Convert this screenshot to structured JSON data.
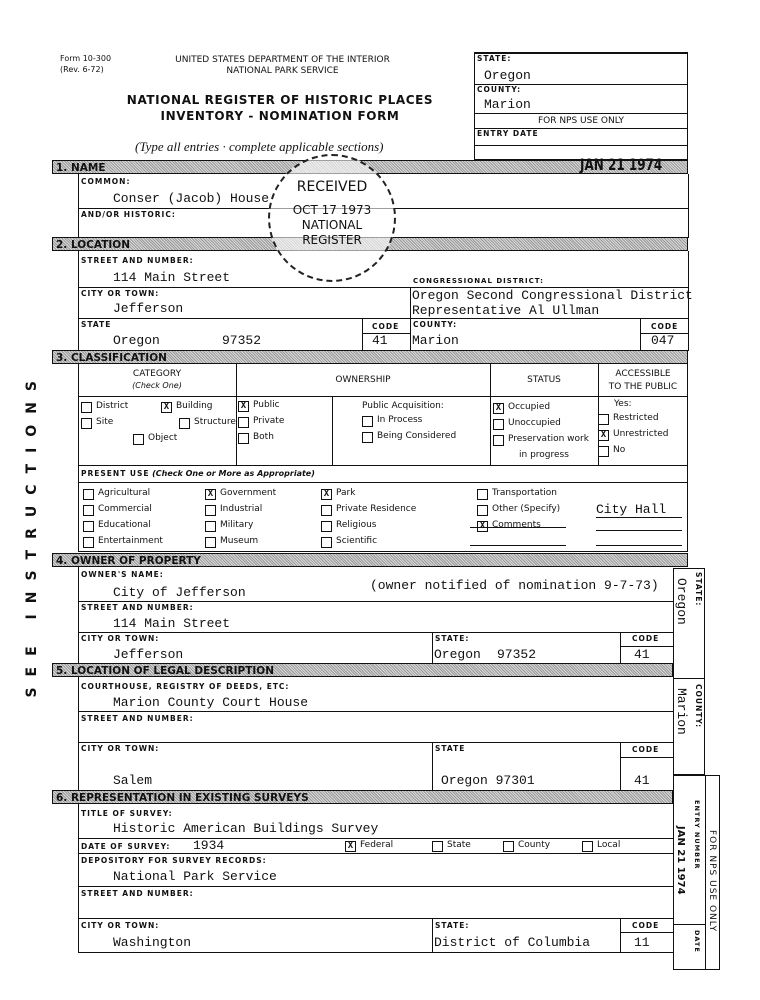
{
  "header": {
    "form_no": "Form 10-300",
    "rev": "(Rev. 6-72)",
    "dept": "UNITED STATES DEPARTMENT OF THE INTERIOR",
    "service": "NATIONAL PARK SERVICE",
    "title1": "NATIONAL REGISTER OF HISTORIC PLACES",
    "title2": "INVENTORY - NOMINATION FORM",
    "instructions": "(Type all entries  ·  complete applicable sections)",
    "side_instructions": "SEE INSTRUCTIONS"
  },
  "nps_box": {
    "state_label": "STATE:",
    "state": "Oregon",
    "county_label": "COUNTY:",
    "county": "Marion",
    "nps_only": "FOR NPS USE ONLY",
    "entry_date_label": "ENTRY DATE",
    "entry_date": "JAN 21 1974"
  },
  "stamp": {
    "line1": "RECEIVED",
    "line2": "OCT 17 1973",
    "line3": "NATIONAL",
    "line4": "REGISTER"
  },
  "s1": {
    "title": "1. NAME",
    "common_label": "COMMON:",
    "common": "Conser (Jacob) House",
    "historic_label": "AND/OR HISTORIC:",
    "historic": ""
  },
  "s2": {
    "title": "2. LOCATION",
    "street_label": "STREET AND NUMBER:",
    "street": "114 Main Street",
    "city_label": "CITY OR TOWN:",
    "city": "Jefferson",
    "district_label": "CONGRESSIONAL DISTRICT:",
    "district1": "Oregon Second Congressional District",
    "district2": "Representative Al Ullman",
    "state_label": "STATE",
    "state": "Oregon",
    "zip": "97352",
    "code_label": "CODE",
    "state_code": "41",
    "county_label": "COUNTY:",
    "county": "Marion",
    "county_code_label": "CODE",
    "county_code": "047"
  },
  "s3": {
    "title": "3. CLASSIFICATION",
    "cat_h1": "CATEGORY",
    "cat_h2": "(Check One)",
    "own_h": "OWNERSHIP",
    "status_h": "STATUS",
    "acc_h1": "ACCESSIBLE",
    "acc_h2": "TO THE PUBLIC",
    "category": [
      {
        "label": "District",
        "checked": false
      },
      {
        "label": "Building",
        "checked": true
      },
      {
        "label": "Site",
        "checked": false
      },
      {
        "label": "Structure",
        "checked": false
      },
      {
        "label": "Object",
        "checked": false
      }
    ],
    "ownership": [
      {
        "label": "Public",
        "checked": true
      },
      {
        "label": "Private",
        "checked": false
      },
      {
        "label": "Both",
        "checked": false
      }
    ],
    "acq_label": "Public Acquisition:",
    "acquisition": [
      {
        "label": "In Process",
        "checked": false
      },
      {
        "label": "Being Considered",
        "checked": false
      }
    ],
    "status": [
      {
        "label": "Occupied",
        "checked": true
      },
      {
        "label": "Unoccupied",
        "checked": false
      },
      {
        "label": "Preservation work",
        "checked": false
      }
    ],
    "status_cont": "in progress",
    "yes_label": "Yes:",
    "access": [
      {
        "label": "Restricted",
        "checked": false
      },
      {
        "label": "Unrestricted",
        "checked": true
      },
      {
        "label": "No",
        "checked": false
      }
    ],
    "present_use_label": "PRESENT USE",
    "present_use_hint": "(Check One or More as Appropriate)",
    "present_use": [
      {
        "label": "Agricultural",
        "checked": false
      },
      {
        "label": "Commercial",
        "checked": false
      },
      {
        "label": "Educational",
        "checked": false
      },
      {
        "label": "Entertainment",
        "checked": false
      },
      {
        "label": "Government",
        "checked": true
      },
      {
        "label": "Industrial",
        "checked": false
      },
      {
        "label": "Military",
        "checked": false
      },
      {
        "label": "Museum",
        "checked": false
      },
      {
        "label": "Park",
        "checked": true
      },
      {
        "label": "Private Residence",
        "checked": false
      },
      {
        "label": "Religious",
        "checked": false
      },
      {
        "label": "Scientific",
        "checked": false
      },
      {
        "label": "Transportation",
        "checked": false
      },
      {
        "label": "Other (Specify)",
        "checked": false
      },
      {
        "label": "Comments",
        "checked": true
      }
    ],
    "comments": "City Hall"
  },
  "s4": {
    "title": "4. OWNER OF PROPERTY",
    "name_label": "OWNER'S NAME:",
    "name": "City of Jefferson",
    "note": "(owner notified of nomination 9-7-73)",
    "street_label": "STREET AND NUMBER:",
    "street": "114 Main Street",
    "city_label": "CITY OR TOWN:",
    "city": "Jefferson",
    "state_label": "STATE:",
    "state": "Oregon",
    "zip": "97352",
    "code_label": "CODE",
    "code": "41"
  },
  "side": {
    "state_label": "STATE:",
    "state": "Oregon",
    "county_label": "COUNTY:",
    "county": "Marion",
    "nps_only": "FOR NPS USE ONLY",
    "entry_label": "ENTRY NUMBER",
    "date_label": "DATE",
    "entry_stamp": "JAN 21 1974"
  },
  "s5": {
    "title": "5. LOCATION OF LEGAL DESCRIPTION",
    "court_label": "COURTHOUSE, REGISTRY OF DEEDS, ETC:",
    "court": "Marion County Court House",
    "street_label": "STREET AND NUMBER:",
    "street": "",
    "city_label": "CITY OR TOWN:",
    "city": "Salem",
    "state_label": "STATE",
    "state": "Oregon  97301",
    "code_label": "CODE",
    "code": "41"
  },
  "s6": {
    "title": "6. REPRESENTATION IN EXISTING SURVEYS",
    "survey_label": "TITLE OF SURVEY:",
    "survey": "Historic American Buildings Survey",
    "date_label": "DATE OF SURVEY:",
    "date": "1934",
    "levels": [
      {
        "label": "Federal",
        "checked": true
      },
      {
        "label": "State",
        "checked": false
      },
      {
        "label": "County",
        "checked": false
      },
      {
        "label": "Local",
        "checked": false
      }
    ],
    "depo_label": "DEPOSITORY FOR SURVEY RECORDS:",
    "depo": "National Park Service",
    "street_label": "STREET AND NUMBER:",
    "street": "",
    "city_label": "CITY OR TOWN:",
    "city": "Washington",
    "state_label": "STATE:",
    "state": "District of Columbia",
    "code_label": "CODE",
    "code": "11"
  }
}
